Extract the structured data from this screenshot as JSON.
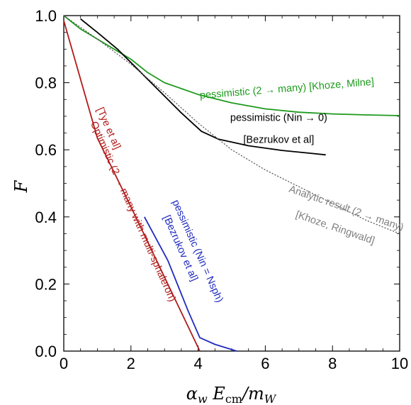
{
  "chart_data": {
    "type": "line",
    "xlabel": "αw Ecm/mW",
    "ylabel": "F",
    "xlim": [
      0,
      10
    ],
    "ylim": [
      0,
      1.0
    ],
    "x_ticks": [
      0,
      2,
      4,
      6,
      8,
      10
    ],
    "y_ticks": [
      0.0,
      0.2,
      0.4,
      0.6,
      0.8,
      1.0
    ],
    "x_tick_labels": [
      "0",
      "2",
      "4",
      "6",
      "8",
      "10"
    ],
    "y_tick_labels": [
      "0.0",
      "0.2",
      "0.4",
      "0.6",
      "0.8",
      "1.0"
    ],
    "grid": false,
    "series": [
      {
        "key": "green",
        "color": "#1e9a1e",
        "style": "solid",
        "x": [
          0,
          0.5,
          1,
          1.5,
          2,
          2.5,
          3,
          4,
          5,
          6,
          7,
          8,
          9,
          10
        ],
        "y": [
          1.0,
          0.96,
          0.93,
          0.9,
          0.87,
          0.83,
          0.8,
          0.765,
          0.74,
          0.722,
          0.712,
          0.707,
          0.704,
          0.702
        ]
      },
      {
        "key": "black",
        "color": "#000000",
        "style": "solid",
        "x": [
          0.5,
          1,
          1.6,
          2,
          2.5,
          3,
          3.5,
          4.1,
          4.6,
          5.5,
          6.5,
          7.3,
          7.8
        ],
        "y": [
          0.99,
          0.95,
          0.9,
          0.86,
          0.81,
          0.76,
          0.71,
          0.655,
          0.632,
          0.612,
          0.598,
          0.59,
          0.585
        ]
      },
      {
        "key": "dotted",
        "color": "#555555",
        "style": "dotted",
        "x": [
          0,
          1,
          2,
          3,
          4,
          5,
          6,
          7,
          8,
          9,
          10
        ],
        "y": [
          1.0,
          0.93,
          0.855,
          0.77,
          0.68,
          0.6,
          0.54,
          0.49,
          0.44,
          0.39,
          0.35
        ]
      },
      {
        "key": "red",
        "color": "#b01a1a",
        "style": "solid",
        "x": [
          0,
          1.0,
          2.0,
          3.0,
          4.05
        ],
        "y": [
          0.985,
          0.635,
          0.43,
          0.22,
          0.0
        ]
      },
      {
        "key": "blue",
        "color": "#1f2bbd",
        "style": "solid",
        "x": [
          2.4,
          3.1,
          3.7,
          4.05,
          4.5,
          5.15
        ],
        "y": [
          0.4,
          0.27,
          0.12,
          0.04,
          0.02,
          0.0
        ]
      }
    ],
    "annotations": [
      {
        "key": "green_label",
        "color": "#1e9a1e",
        "text": "pessimistic (2 → many) [Khoze, Milne]",
        "x": 6.65,
        "y": 0.773,
        "angle": -4.5
      },
      {
        "key": "black_label_1",
        "color": "#000000",
        "text": "pessimistic (Nin → 0)",
        "x": 6.4,
        "y": 0.686,
        "angle": 0
      },
      {
        "key": "black_label_2",
        "color": "#000000",
        "text": "[Bezrukov et al]",
        "x": 6.4,
        "y": 0.621,
        "angle": 0
      },
      {
        "key": "dotted_label_1",
        "color": "#808080",
        "text": "Analytic result (2 → many)",
        "x": 8.38,
        "y": 0.417,
        "angle": 19
      },
      {
        "key": "dotted_label_2",
        "color": "#808080",
        "text": "[Khoze, Ringwald]",
        "x": 8.05,
        "y": 0.359,
        "angle": 19
      },
      {
        "key": "red_label_1",
        "color": "#b01a1a",
        "text": "Optimistic (2 → many with multi-sphaleron)",
        "x": 1.98,
        "y": 0.412,
        "angle": 66
      },
      {
        "key": "red_label_2",
        "color": "#b01a1a",
        "text": "[Tye et al]",
        "x": 1.25,
        "y": 0.66,
        "angle": 66
      },
      {
        "key": "blue_label_1",
        "color": "#1f2bbd",
        "text": "pessimistic (Nin = Nsph)",
        "x": 3.9,
        "y": 0.294,
        "angle": 66
      },
      {
        "key": "blue_label_2",
        "color": "#1f2bbd",
        "text": "[Bezrukov et al]",
        "x": 3.39,
        "y": 0.303,
        "angle": 66
      }
    ]
  }
}
